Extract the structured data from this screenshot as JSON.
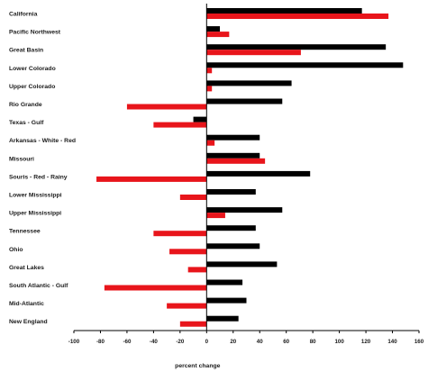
{
  "chart_data": {
    "type": "bar",
    "orientation": "horizontal",
    "categories": [
      "California",
      "Pacific Northwest",
      "Great Basin",
      "Lower Colorado",
      "Upper Colorado",
      "Rio Grande",
      "Texas - Gulf",
      "Arkansas - White - Red",
      "Missouri",
      "Souris - Red - Rainy",
      "Lower Mississippi",
      "Upper Mississippi",
      "Tennessee",
      "Ohio",
      "Great Lakes",
      "South Atlantic - Gulf",
      "Mid-Atlantic",
      "New England"
    ],
    "series": [
      {
        "color": "#000000",
        "values": [
          117,
          10,
          135,
          148,
          64,
          57,
          -10,
          40,
          40,
          78,
          37,
          57,
          37,
          40,
          53,
          27,
          30,
          24
        ]
      },
      {
        "color": "#e8151b",
        "values": [
          137,
          17,
          71,
          4,
          4,
          -60,
          -40,
          6,
          44,
          -83,
          -20,
          14,
          -40,
          -28,
          -14,
          -77,
          -30,
          -20
        ]
      }
    ],
    "xlabel": "percent change",
    "xlim": [
      -100,
      160
    ],
    "xticks": [
      -100,
      -80,
      -60,
      -40,
      -20,
      0,
      20,
      40,
      60,
      80,
      100,
      120,
      140,
      160
    ],
    "grid": false,
    "legend": "none"
  }
}
